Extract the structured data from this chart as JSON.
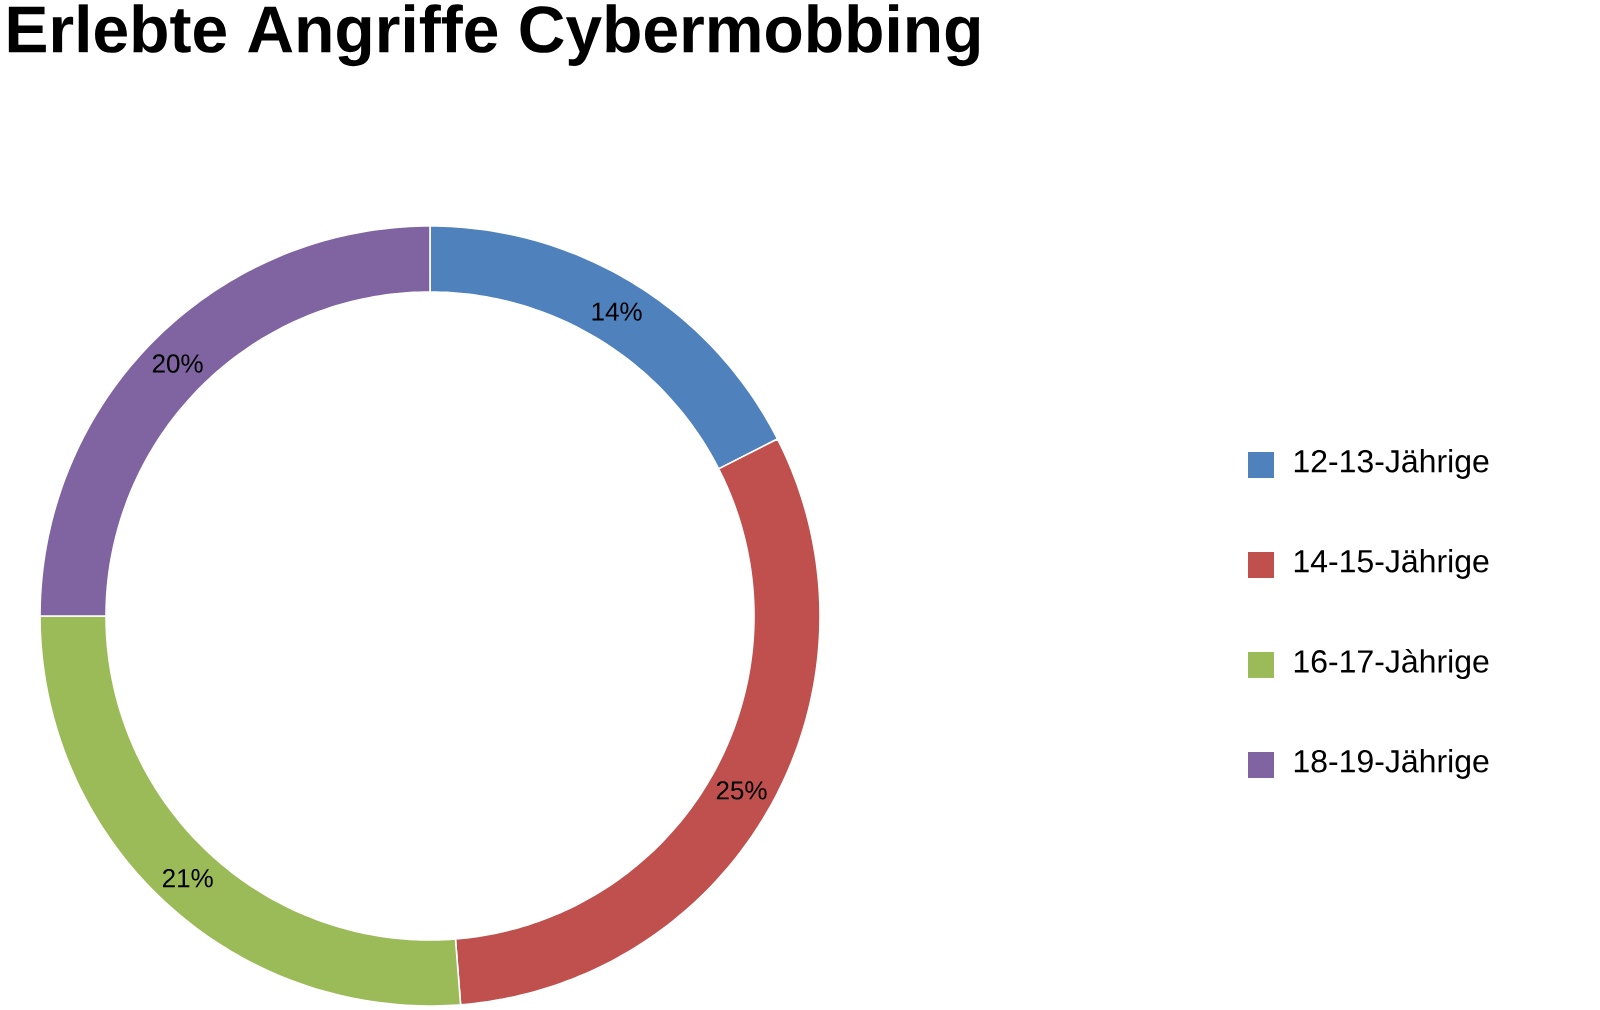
{
  "chart_data": {
    "type": "donut",
    "title": "Erlebte Angriffe Cybermobbing",
    "categories": [
      "12-13-Jährige",
      "14-15-Jährige",
      "16-17-Jàhrige",
      "18-19-Jährige"
    ],
    "values": [
      14,
      25,
      21,
      20
    ],
    "value_labels": [
      "14%",
      "25%",
      "21%",
      "20%"
    ],
    "colors": [
      "#4f81bd",
      "#c0504d",
      "#9bbb59",
      "#8064a2"
    ],
    "legend": "right"
  }
}
